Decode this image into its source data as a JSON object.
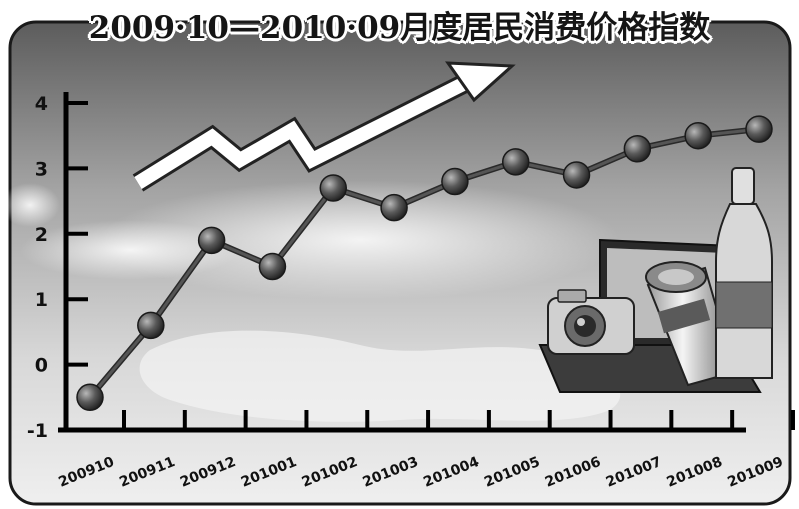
{
  "title": "2009·10—2010·09月度居民消费价格指数",
  "chart_data": {
    "type": "line",
    "title": "2009·10—2010·09月度居民消费价格指数",
    "xlabel": "",
    "ylabel": "",
    "categories": [
      "200910",
      "200911",
      "200912",
      "201001",
      "201002",
      "201003",
      "201004",
      "201005",
      "201006",
      "201007",
      "201008",
      "201009"
    ],
    "series": [
      {
        "values": [
          -0.5,
          0.6,
          1.9,
          1.5,
          2.7,
          2.4,
          2.8,
          3.1,
          2.9,
          3.3,
          3.5,
          3.6
        ]
      }
    ],
    "yticks": [
      "4",
      "3",
      "2",
      "1",
      "0",
      "-1"
    ],
    "ylim": [
      -1,
      4
    ],
    "grid": false,
    "legend": "none"
  },
  "colors": {
    "line": "#555555",
    "marker": "#3a3a3a",
    "axis": "#000000",
    "sky": "#9a9a9a"
  }
}
